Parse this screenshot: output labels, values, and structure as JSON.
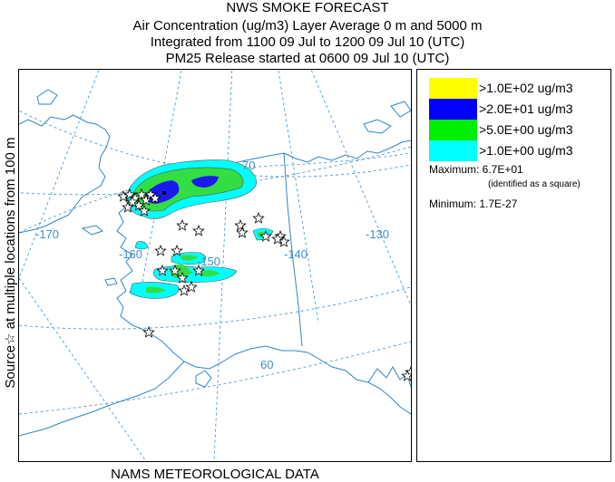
{
  "header": {
    "title": "NWS SMOKE FORECAST",
    "line1": "Air Concentration (ug/m3) Layer Average     0 m and  5000 m",
    "line2": "Integrated from 1100 09 Jul to 1200 09 Jul 10 (UTC)",
    "line3": "PM25 Release started at 0600 09 Jul 10 (UTC)"
  },
  "side_label": "Source☆ at multiple locations   from   100 m",
  "footer": "NAMS METEOROLOGICAL DATA",
  "legend": {
    "items": [
      {
        "color": "#ffff00",
        "label": ">1.0E+02 ug/m3"
      },
      {
        "color": "#0000ff",
        "label": ">2.0E+01 ug/m3"
      },
      {
        "color": "#00ee00",
        "label": ">5.0E+00 ug/m3"
      },
      {
        "color": "#00ffff",
        "label": ">1.0E+00 ug/m3"
      }
    ],
    "maximum": "Maximum: 6.7E+01",
    "maximum_note": "(identified as a square)",
    "minimum": "Minimum: 1.7E-27"
  },
  "map": {
    "grid_labels": {
      "lat70": "70",
      "lat60": "60",
      "lon170": "-170",
      "lon160": "-160",
      "lon150": "-150",
      "lon140": "-140",
      "lon130": "-130"
    },
    "colors": {
      "grid": "#3a8fd0",
      "coast": "#2f86c8",
      "cyan": "#00ffff",
      "green": "#33dd44",
      "blue": "#1a1aee"
    }
  }
}
